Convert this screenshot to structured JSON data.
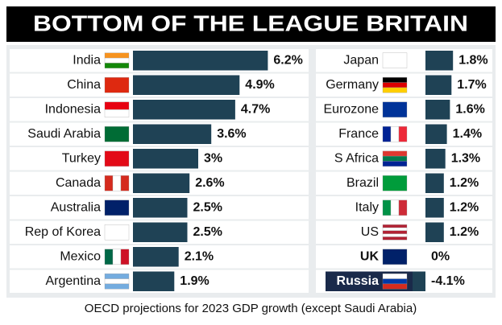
{
  "title": "BOTTOM OF THE LEAGUE BRITAIN",
  "note": "OECD projections for 2023 GDP growth (except Saudi Arabia)",
  "chart_data": [
    {
      "type": "bar",
      "color": "#1f4255",
      "categories": [
        "India",
        "China",
        "Indonesia",
        "Saudi Arabia",
        "Turkey",
        "Canada",
        "Australia",
        "Rep of Korea",
        "Mexico",
        "Argentina"
      ],
      "values": [
        6.2,
        4.9,
        4.7,
        3.6,
        3,
        2.6,
        2.5,
        2.5,
        2.1,
        1.9
      ],
      "value_labels": [
        "6.2%",
        "4.9%",
        "4.7%",
        "3.6%",
        "3%",
        "2.6%",
        "2.5%",
        "2.5%",
        "2.1%",
        "1.9%"
      ]
    },
    {
      "type": "bar",
      "color": "#1f4255",
      "categories": [
        "Japan",
        "Germany",
        "Eurozone",
        "France",
        "S Africa",
        "Brazil",
        "Italy",
        "US",
        "UK",
        "Russia"
      ],
      "values": [
        1.8,
        1.7,
        1.6,
        1.4,
        1.3,
        1.2,
        1.2,
        1.2,
        0,
        -4.1
      ],
      "value_labels": [
        "1.8%",
        "1.7%",
        "1.6%",
        "1.4%",
        "1.3%",
        "1.2%",
        "1.2%",
        "1.2%",
        "0%",
        "-4.1%"
      ]
    }
  ]
}
